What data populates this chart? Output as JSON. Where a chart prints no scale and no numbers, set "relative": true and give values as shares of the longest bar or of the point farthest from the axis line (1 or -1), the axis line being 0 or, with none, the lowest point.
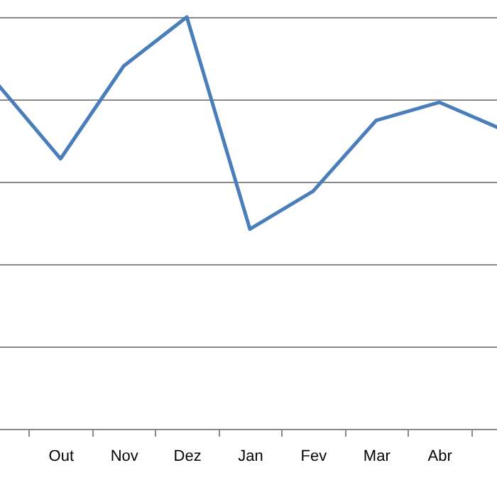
{
  "chart_data": {
    "type": "line",
    "relative": true,
    "grid": "y",
    "categories": [
      null,
      "Out",
      "Nov",
      "Dez",
      "Jan",
      "Fev",
      "Mar",
      "Abr",
      null
    ],
    "series": [
      {
        "color": "#4a7ebb",
        "values": [
          0.837,
          0.656,
          0.881,
          1,
          0.485,
          0.577,
          0.749,
          0.793,
          0.727
        ]
      }
    ]
  }
}
